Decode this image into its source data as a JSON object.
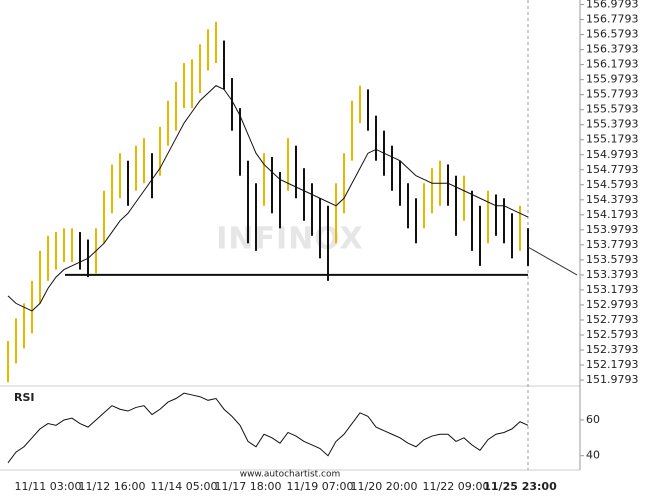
{
  "chart_data": [
    {
      "type": "price-bars",
      "watermark": "INFINOX",
      "categories": [
        null,
        null,
        null,
        null,
        null,
        "11/11 03:00",
        null,
        null,
        null,
        null,
        null,
        null,
        null,
        "11/12 16:00",
        null,
        null,
        null,
        null,
        null,
        null,
        null,
        null,
        "11/14 05:00",
        null,
        null,
        null,
        null,
        null,
        null,
        null,
        "11/17 18:00",
        null,
        null,
        null,
        null,
        null,
        null,
        null,
        null,
        "11/19 07:00",
        null,
        null,
        null,
        null,
        null,
        null,
        null,
        "11/20 20:00",
        null,
        null,
        null,
        null,
        null,
        null,
        null,
        null,
        "11/22 09:00",
        null,
        null,
        null,
        null,
        null,
        null,
        null,
        "11/25 23:00",
        null
      ],
      "high": [
        152.5,
        152.8,
        153.0,
        153.3,
        153.7,
        153.9,
        153.95,
        154.0,
        154.0,
        153.95,
        153.85,
        154.0,
        154.5,
        154.85,
        155.0,
        154.9,
        155.1,
        155.2,
        155.0,
        155.35,
        155.7,
        155.95,
        156.2,
        156.25,
        156.45,
        156.65,
        156.75,
        156.5,
        156.0,
        155.6,
        154.9,
        154.6,
        155.0,
        154.95,
        154.75,
        155.2,
        155.1,
        154.8,
        154.6,
        154.4,
        154.3,
        154.6,
        155.0,
        155.7,
        155.9,
        155.85,
        155.5,
        155.3,
        155.1,
        154.9,
        154.6,
        154.4,
        154.6,
        154.8,
        154.9,
        154.85,
        154.7,
        154.7,
        154.5,
        154.3,
        154.5,
        154.45,
        154.4,
        154.2,
        154.3,
        154.0
      ],
      "low": [
        151.95,
        152.2,
        152.4,
        152.6,
        153.0,
        153.3,
        153.45,
        153.55,
        153.55,
        153.45,
        153.35,
        153.4,
        153.8,
        154.2,
        154.4,
        154.3,
        154.5,
        154.6,
        154.4,
        154.7,
        155.1,
        155.3,
        155.6,
        155.6,
        155.8,
        156.1,
        156.2,
        155.85,
        155.3,
        154.7,
        153.8,
        153.7,
        154.3,
        154.2,
        154.0,
        154.5,
        154.4,
        154.1,
        153.9,
        153.6,
        153.3,
        153.8,
        154.2,
        154.9,
        155.4,
        155.3,
        154.9,
        154.7,
        154.5,
        154.3,
        154.0,
        153.8,
        154.0,
        154.2,
        154.3,
        154.3,
        153.9,
        154.1,
        153.7,
        153.5,
        153.8,
        153.9,
        153.8,
        153.6,
        153.7,
        153.5
      ],
      "moving_average": [
        153.1,
        153.0,
        152.95,
        152.9,
        153.0,
        153.2,
        153.35,
        153.45,
        153.5,
        153.55,
        153.6,
        153.7,
        153.8,
        153.95,
        154.1,
        154.2,
        154.35,
        154.5,
        154.65,
        154.8,
        155.0,
        155.2,
        155.4,
        155.55,
        155.7,
        155.8,
        155.9,
        155.85,
        155.7,
        155.5,
        155.25,
        155.0,
        154.85,
        154.75,
        154.65,
        154.6,
        154.55,
        154.5,
        154.45,
        154.4,
        154.35,
        154.3,
        154.4,
        154.6,
        154.8,
        155.0,
        155.05,
        155.0,
        154.95,
        154.9,
        154.8,
        154.7,
        154.65,
        154.6,
        154.6,
        154.6,
        154.55,
        154.5,
        154.45,
        154.4,
        154.35,
        154.3,
        154.3,
        154.25,
        154.2,
        154.15
      ],
      "support_level": 153.3793,
      "up_color": "#e6b800",
      "down_color": "#111111",
      "ylim": [
        151.9,
        157.04
      ],
      "yticks": [
        156.9793,
        156.7793,
        156.5793,
        156.3793,
        156.1793,
        155.9793,
        155.7793,
        155.5793,
        155.3793,
        155.1793,
        154.9793,
        154.7793,
        154.5793,
        154.3793,
        154.1793,
        153.9793,
        153.7793,
        153.5793,
        153.3793,
        153.1793,
        152.9793,
        152.7793,
        152.5793,
        152.3793,
        152.1793,
        151.9793
      ]
    },
    {
      "type": "rsi",
      "title": "RSI",
      "footer": "www.autochartist.com",
      "values": [
        36,
        42,
        45,
        50,
        55,
        58,
        57,
        60,
        61,
        58,
        56,
        60,
        64,
        68,
        66,
        65,
        67,
        68,
        63,
        66,
        70,
        72,
        75,
        74,
        73,
        71,
        72,
        66,
        62,
        57,
        48,
        45,
        52,
        50,
        47,
        53,
        51,
        48,
        46,
        44,
        40,
        48,
        52,
        58,
        64,
        62,
        56,
        54,
        52,
        50,
        47,
        45,
        49,
        51,
        52,
        52,
        48,
        50,
        46,
        43,
        49,
        52,
        53,
        55,
        59,
        57
      ],
      "ylim": [
        32,
        79
      ],
      "yticks": [
        60,
        40
      ]
    }
  ]
}
